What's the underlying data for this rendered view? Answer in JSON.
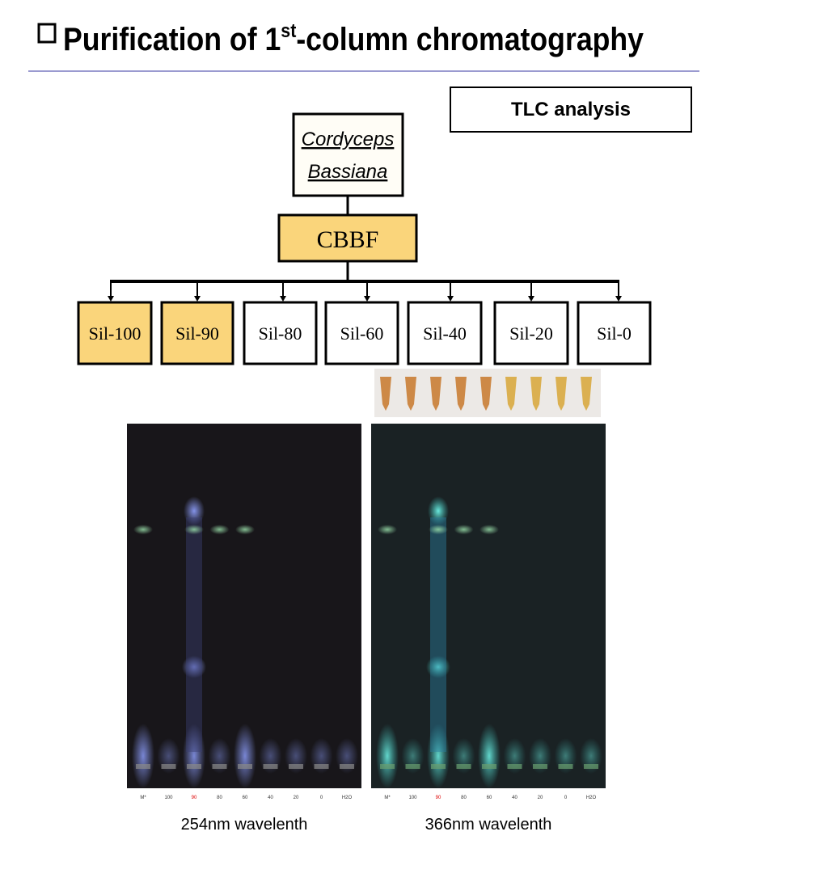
{
  "header": {
    "title": {
      "prefix": "Purification of 1",
      "sup": "st",
      "suffix": "-column chromatography"
    }
  },
  "tlc_box": {
    "label": "TLC analysis"
  },
  "source": {
    "line1": "Cordyceps",
    "line2": "Bassiana"
  },
  "extract": {
    "label": "CBBF",
    "color": "#fad57b"
  },
  "fractions": [
    {
      "label": "Sil-100",
      "color": "#fad57b"
    },
    {
      "label": "Sil-90",
      "color": "#fad57b"
    },
    {
      "label": "Sil-80",
      "color": "#ffffff"
    },
    {
      "label": "Sil-60",
      "color": "#ffffff"
    },
    {
      "label": "Sil-40",
      "color": "#ffffff"
    },
    {
      "label": "Sil-20",
      "color": "#ffffff"
    },
    {
      "label": "Sil-0",
      "color": "#ffffff"
    }
  ],
  "plates": [
    {
      "caption": "254nm wavelenth",
      "lanes": [
        "M*",
        "100",
        "90",
        "80",
        "60",
        "40",
        "20",
        "0",
        "H2O"
      ]
    },
    {
      "caption": "366nm wavelenth",
      "lanes": [
        "M*",
        "100",
        "90",
        "80",
        "60",
        "40",
        "20",
        "0",
        "H2O"
      ]
    }
  ]
}
